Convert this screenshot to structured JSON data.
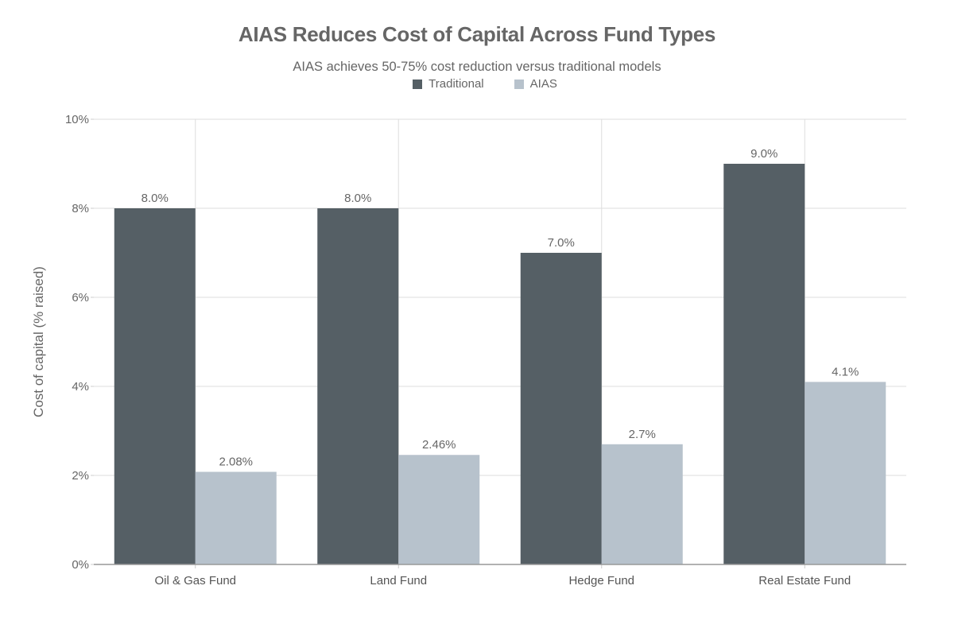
{
  "chart_data": {
    "type": "bar",
    "title": "AIAS Reduces Cost of Capital Across Fund Types",
    "subtitle": "AIAS achieves 50-75% cost reduction versus traditional models",
    "xlabel": "",
    "ylabel": "Cost of capital (% raised)",
    "ylim": [
      0,
      10
    ],
    "yticks": [
      0,
      2,
      4,
      6,
      8,
      10
    ],
    "ytick_labels": [
      "0%",
      "2%",
      "4%",
      "6%",
      "8%",
      "10%"
    ],
    "grid": true,
    "legend_position": "top-center",
    "categories": [
      "Oil & Gas Fund",
      "Land Fund",
      "Hedge Fund",
      "Real Estate Fund"
    ],
    "series": [
      {
        "name": "Traditional",
        "color": "#555f65",
        "values": [
          8.0,
          8.0,
          7.0,
          9.0
        ],
        "labels": [
          "8.0%",
          "8.0%",
          "7.0%",
          "9.0%"
        ]
      },
      {
        "name": "AIAS",
        "color": "#b7c2cc",
        "values": [
          2.08,
          2.46,
          2.7,
          4.1
        ],
        "labels": [
          "2.08%",
          "2.46%",
          "2.7%",
          "4.1%"
        ]
      }
    ]
  }
}
